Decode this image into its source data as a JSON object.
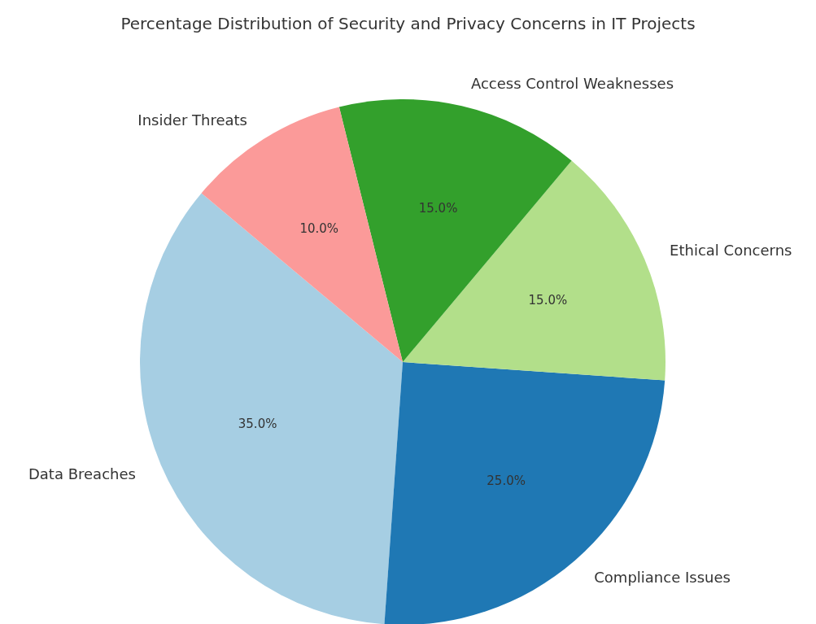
{
  "chart_data": {
    "type": "pie",
    "title": "Percentage Distribution of Security and Privacy Concerns in IT Projects",
    "categories": [
      "Data Breaches",
      "Compliance Issues",
      "Ethical Concerns",
      "Access Control Weaknesses",
      "Insider Threats"
    ],
    "values": [
      35,
      25,
      15,
      15,
      10
    ],
    "colors": [
      "#a6cee3",
      "#1f78b4",
      "#b2df8a",
      "#33a02c",
      "#fb9a99"
    ],
    "value_labels": [
      "35.0%",
      "25.0%",
      "15.0%",
      "15.0%",
      "10.0%"
    ],
    "legend": false
  }
}
